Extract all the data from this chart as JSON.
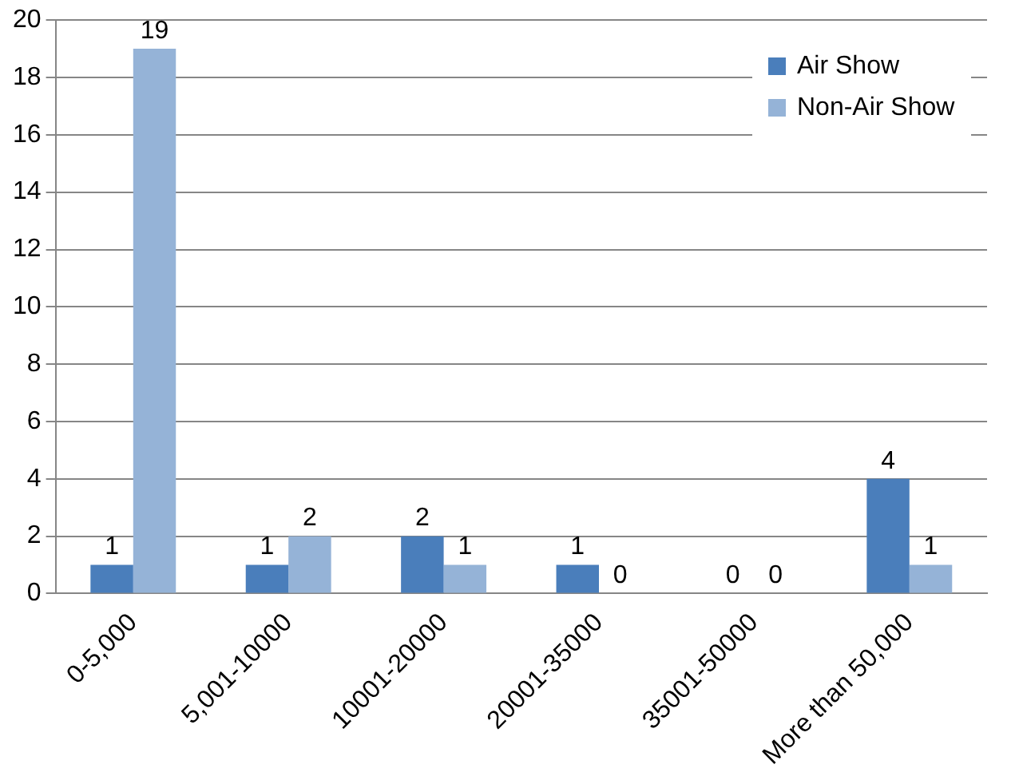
{
  "chart_data": {
    "type": "bar",
    "categories": [
      "0-5,000",
      "5,001-10000",
      "10001-20000",
      "20001-35000",
      "35001-50000",
      "More than 50,000"
    ],
    "series": [
      {
        "name": "Air Show",
        "color": "#4a7ebb",
        "values": [
          1,
          1,
          2,
          1,
          0,
          4
        ]
      },
      {
        "name": "Non-Air Show",
        "color": "#95b3d7",
        "values": [
          19,
          2,
          1,
          0,
          0,
          1
        ]
      }
    ],
    "ylim": [
      0,
      20
    ],
    "yticks": [
      0,
      2,
      4,
      6,
      8,
      10,
      12,
      14,
      16,
      18,
      20
    ],
    "grid": "y",
    "legend": "top right",
    "data_labels": true
  }
}
